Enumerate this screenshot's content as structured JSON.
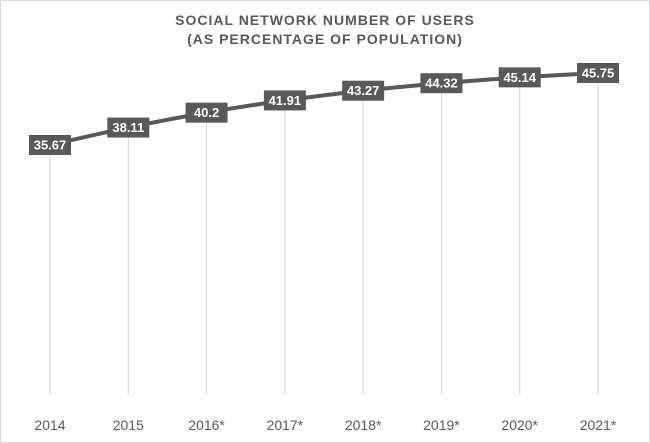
{
  "chart_data": {
    "type": "line",
    "title_lines": [
      "SOCIAL NETWORK NUMBER OF USERS",
      "(AS PERCENTAGE OF POPULATION)"
    ],
    "categories": [
      "2014",
      "2015",
      "2016*",
      "2017*",
      "2018*",
      "2019*",
      "2020*",
      "2021*"
    ],
    "series": [
      {
        "values": [
          35.67,
          38.11,
          40.2,
          41.91,
          43.27,
          44.32,
          45.14,
          45.75
        ]
      }
    ],
    "data_labels": [
      "35.67",
      "38.11",
      "40.2",
      "41.91",
      "43.27",
      "44.32",
      "45.14",
      "45.75"
    ],
    "xlabel": "",
    "ylabel": "",
    "grid": false,
    "legend": "none",
    "colors": {
      "line": "#595959",
      "label_bg": "#595959",
      "label_text": "#ffffff",
      "drop_lines": "#d0d0d0"
    }
  }
}
